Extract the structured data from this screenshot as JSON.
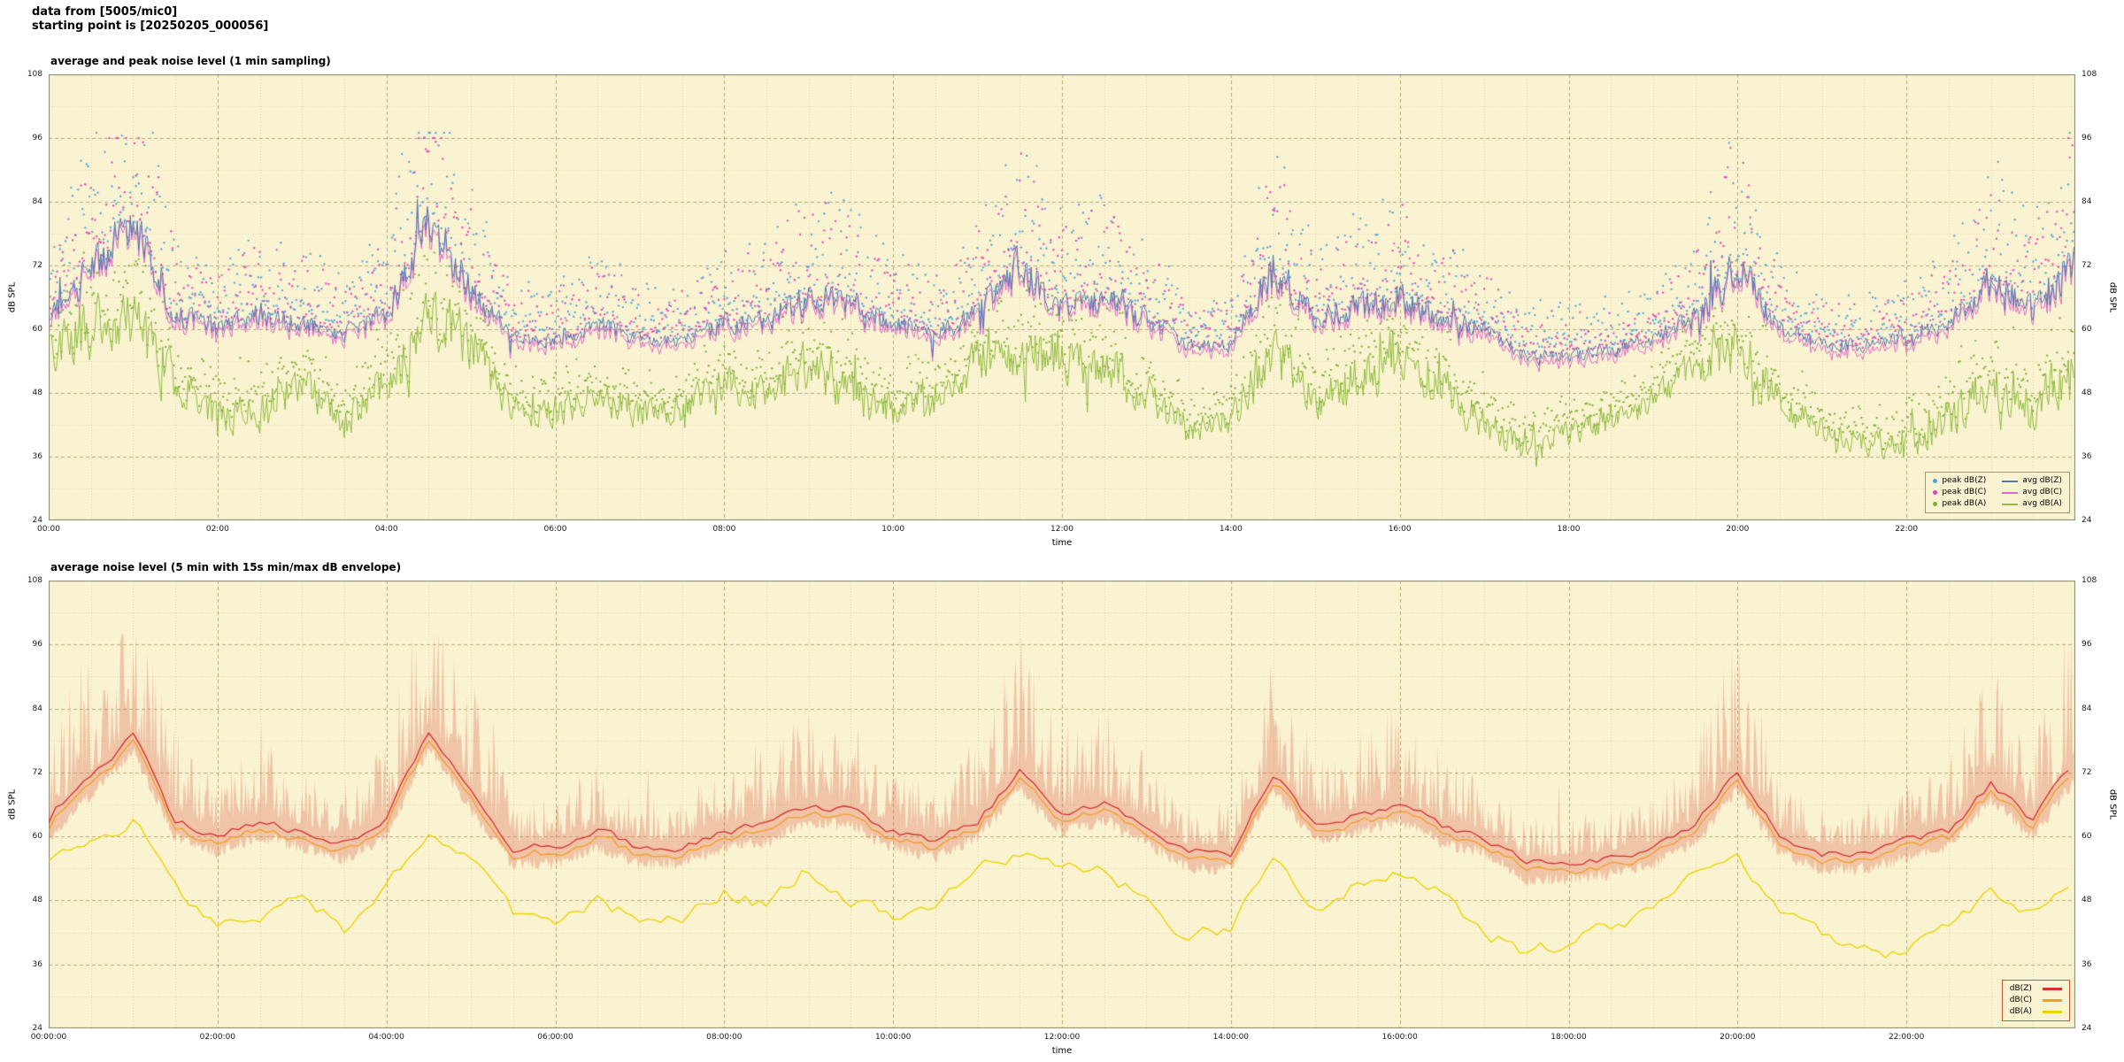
{
  "header": {
    "line1": "data from [5005/mic0]",
    "line2": "starting point is [20250205_000056]"
  },
  "chart_data": [
    {
      "type": "line+scatter",
      "title": "average and peak noise level (1 min sampling)",
      "xlabel": "time",
      "ylabel": "dB SPL",
      "sampling": "1 min",
      "ylim": [
        24,
        108
      ],
      "yticks": [
        24,
        36,
        48,
        60,
        72,
        84,
        96,
        108
      ],
      "x_range_hours": [
        0,
        24
      ],
      "xticks_hours": [
        0,
        2,
        4,
        6,
        8,
        10,
        12,
        14,
        16,
        18,
        20,
        22
      ],
      "xtick_labels": [
        "00:00",
        "02:00",
        "04:00",
        "06:00",
        "08:00",
        "10:00",
        "12:00",
        "14:00",
        "16:00",
        "18:00",
        "20:00",
        "22:00"
      ],
      "grid": true,
      "legend_position": "bottom-right",
      "series": [
        {
          "name": "peak dB(Z)",
          "kind": "scatter",
          "color": "#4aa3dd"
        },
        {
          "name": "peak dB(C)",
          "kind": "scatter",
          "color": "#e040b8"
        },
        {
          "name": "peak dB(A)",
          "kind": "scatter",
          "color": "#7ab12f"
        },
        {
          "name": "avg dB(Z)",
          "kind": "line",
          "color": "#4f7ab0"
        },
        {
          "name": "avg dB(C)",
          "kind": "line",
          "color": "#e06ac8"
        },
        {
          "name": "avg dB(A)",
          "kind": "line",
          "color": "#8fbc3e"
        }
      ],
      "base_curves": {
        "hours_step": 0.5,
        "avg_dBZ": [
          63,
          71,
          79,
          63,
          60,
          63,
          61,
          59,
          63,
          80,
          68,
          58,
          58,
          61,
          58,
          58,
          61,
          62,
          66,
          65,
          61,
          59,
          63,
          72,
          64,
          66,
          62,
          57,
          57,
          72,
          62,
          64,
          66,
          62,
          60,
          55,
          55,
          56,
          58,
          62,
          72,
          60,
          57,
          57,
          59,
          61,
          70,
          63,
          74
        ],
        "avg_dBA": [
          56,
          60,
          63,
          50,
          44,
          44,
          50,
          42,
          50,
          61,
          57,
          45,
          44,
          48,
          44,
          45,
          50,
          47,
          54,
          48,
          45,
          46,
          54,
          57,
          54,
          53,
          48,
          41,
          43,
          56,
          46,
          51,
          53,
          50,
          42,
          38,
          40,
          43,
          46,
          53,
          57,
          46,
          41,
          39,
          38,
          43,
          49,
          45,
          52
        ],
        "dBC_offset_from_Z": -0.9
      },
      "render_noise": {
        "seed": 20250205,
        "line_jitter_dB": [
          1.2,
          4.2
        ],
        "peak_extra_dB_max": 26
      }
    },
    {
      "type": "line+band",
      "title": "average noise level (5 min with 15s min/max dB envelope)",
      "xlabel": "time",
      "ylabel": "dB SPL",
      "sampling": "5 min",
      "ylim": [
        24,
        108
      ],
      "yticks": [
        24,
        36,
        48,
        60,
        72,
        84,
        96,
        108
      ],
      "x_range_hours": [
        0,
        24
      ],
      "xticks_hours": [
        0,
        2,
        4,
        6,
        8,
        10,
        12,
        14,
        16,
        18,
        20,
        22
      ],
      "xtick_labels": [
        "00:00:00",
        "02:00:00",
        "04:00:00",
        "06:00:00",
        "08:00:00",
        "10:00:00",
        "12:00:00",
        "14:00:00",
        "16:00:00",
        "18:00:00",
        "20:00:00",
        "22:00:00"
      ],
      "grid": true,
      "legend_position": "bottom-right",
      "series": [
        {
          "name": "dB(Z)",
          "kind": "line",
          "color": "#d62f2f"
        },
        {
          "name": "dB(C)",
          "kind": "line",
          "color": "#f59d25"
        },
        {
          "name": "dB(A)",
          "kind": "line",
          "color": "#ecd500"
        }
      ],
      "band": {
        "label": "15s min/max envelope",
        "color": "#e07860",
        "opacity": 0.38
      },
      "base_curves": {
        "hours_step": 0.5,
        "avg_dBZ": [
          63,
          71,
          79,
          63,
          60,
          63,
          61,
          59,
          63,
          80,
          68,
          58,
          58,
          61,
          58,
          58,
          61,
          62,
          66,
          65,
          61,
          59,
          63,
          72,
          64,
          66,
          62,
          57,
          57,
          72,
          62,
          64,
          66,
          62,
          60,
          55,
          55,
          56,
          58,
          62,
          72,
          60,
          57,
          57,
          59,
          61,
          70,
          63,
          74
        ],
        "avg_dBA": [
          56,
          60,
          63,
          50,
          44,
          44,
          50,
          42,
          50,
          61,
          57,
          45,
          44,
          48,
          44,
          45,
          50,
          47,
          54,
          48,
          45,
          46,
          54,
          57,
          54,
          53,
          48,
          41,
          43,
          56,
          46,
          51,
          53,
          50,
          42,
          38,
          40,
          43,
          46,
          53,
          57,
          46,
          41,
          39,
          38,
          43,
          49,
          45,
          52
        ],
        "dBC_offset_from_Z": -1.1
      },
      "render_noise": {
        "seed": 424242,
        "line_jitter_dB": 1.4,
        "band_min_below_dB": 3,
        "band_max_above_dB": 27
      }
    }
  ]
}
